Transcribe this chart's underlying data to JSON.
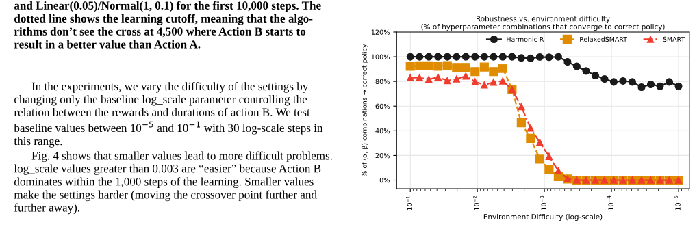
{
  "chart_data": {
    "type": "line",
    "title": "Robustness vs. environment difficulty\n(% of hyperparameter combinations that converge to correct policy)",
    "xlabel": "Environment Difficulty (log-scale)",
    "ylabel": "% of (α, β) combinations → correct policy",
    "x": [
      0.1,
      0.07279,
      0.05298,
      0.03857,
      0.02807,
      0.02043,
      0.01487,
      0.01083,
      0.00788,
      0.005736,
      0.004175,
      0.003039,
      0.002212,
      0.00161,
      0.001172,
      0.0008532,
      0.000621,
      0.000452,
      0.000329,
      0.0002395,
      0.0001743,
      0.0001269,
      9.237e-05,
      6.723e-05,
      4.894e-05,
      3.562e-05,
      2.593e-05,
      1.887e-05,
      1.374e-05,
      1e-05
    ],
    "series": [
      {
        "name": "Harmonic R",
        "color": "#1a1a1a",
        "marker": "circle",
        "line_style": "solid",
        "values": [
          100,
          100,
          100,
          100,
          100,
          100,
          100,
          100,
          100,
          100,
          100,
          100,
          99,
          98.7,
          99.8,
          99.6,
          100,
          95.9,
          92.2,
          88.5,
          84.8,
          82,
          79.6,
          80.4,
          79.6,
          75.4,
          77.6,
          76.1,
          79.6,
          76.1
        ]
      },
      {
        "name": "RelaxedSMART",
        "color": "#e08c00",
        "marker": "square",
        "line_style": "dashed",
        "values": [
          92.4,
          92.6,
          92.6,
          92.4,
          92.8,
          91.3,
          91.3,
          88,
          91.7,
          88,
          90.6,
          73.7,
          46.5,
          33.9,
          17,
          8.7,
          2.8,
          0.9,
          0,
          0,
          0,
          0,
          0,
          0,
          0,
          0,
          0,
          0,
          0,
          0
        ]
      },
      {
        "name": "SMART",
        "color": "#f03c2d",
        "marker": "triangle",
        "line_style": "dashdot",
        "values": [
          83.1,
          83.1,
          81.7,
          83.5,
          80.6,
          82,
          84.4,
          79.8,
          77.2,
          79.4,
          80.4,
          73.5,
          59.6,
          42.2,
          30.6,
          19.3,
          7.6,
          1.1,
          0,
          0,
          0,
          0,
          0,
          0,
          0,
          0,
          0,
          0,
          0,
          0
        ]
      }
    ],
    "log": "x",
    "xlim": [
      0.16,
      6.9e-06
    ],
    "xticks": [
      {
        "value": 0.1,
        "label": "10$^{−1}$"
      },
      {
        "value": 0.01,
        "label": "10$^{−2}$"
      },
      {
        "value": 0.001,
        "label": "10$^{−3}$"
      },
      {
        "value": 0.0001,
        "label": "10$^{−4}$"
      },
      {
        "value": 1e-05,
        "label": "10$^{−5}$"
      }
    ],
    "ylim": [
      -7,
      120
    ],
    "yticks": [
      {
        "value": 0,
        "label": "0%"
      },
      {
        "value": 20,
        "label": "20%"
      },
      {
        "value": 40,
        "label": "40%"
      },
      {
        "value": 60,
        "label": "60%"
      },
      {
        "value": 80,
        "label": "80%"
      },
      {
        "value": 100,
        "label": "100%"
      },
      {
        "value": 120,
        "label": "120%"
      }
    ],
    "grid": true,
    "legend": "top right",
    "annotations": [
      "and Linear(0.05)/Normal(1, 0.1) for the first 10,000 steps. The\ndotted line shows the learning cutoff, meaning that the algo-\nrithms don’t see the cross at 4,500 where Action B starts to\nresult in a better value than Action A.",
      "In the experiments, we vary the difficulty of the settings by\nchanging only the baseline log_scale parameter controlling the\nrelation between the rewards and durations of action B. We test\nbaseline values between 10$^{−5}$ and 10$^{−1}$ with 30 log-scale steps in\nthis range.",
      "Fig. 4 shows that smaller values lead to more difficult problems.\nlog_scale values greater than 0.003 are “easier” because Action B\ndominates within the 1,000 steps of the learning. Smaller values\nmake the settings harder (moving the crossover point further and\nfurther away)."
    ]
  }
}
